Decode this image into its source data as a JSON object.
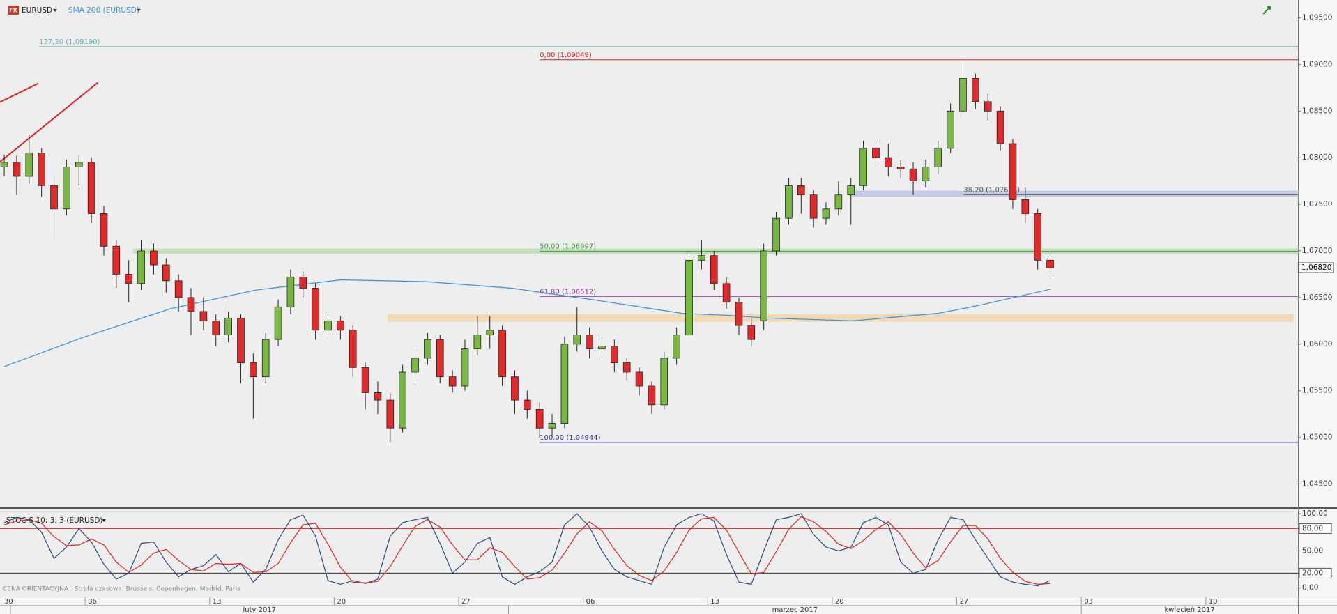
{
  "ui": {
    "logo": "FX",
    "symbol": "EURUSD",
    "indicator": "SMA 200 (EURUSD)",
    "oscillator": "STOC-S 10; 3; 3 (EURUSD)",
    "footer": "CENA ORIENTACYJNA   Strefa czasowa: Brussels, Copenhagen, Madrid, Paris"
  },
  "chart_data": [
    {
      "type": "candlestick",
      "name": "EURUSD",
      "up_color": "#78b843",
      "down_color": "#e12a2a",
      "x": [
        1.75,
        2.25,
        2.75,
        3.25,
        3.75,
        4.25,
        4.75,
        5.25,
        5.75,
        6.25,
        6.75,
        7.25,
        7.75,
        8.25,
        8.75,
        9.25,
        9.75,
        10.25,
        10.75,
        11.25,
        11.75,
        12.25,
        12.75,
        13.25,
        13.75,
        14.25,
        14.75,
        15.25,
        15.75,
        16.25,
        16.75,
        17.25,
        17.75,
        18.25,
        18.75,
        19.25,
        19.75,
        20.25,
        20.75,
        21.25,
        21.75,
        22.25,
        22.75,
        23.25,
        23.75,
        24.25,
        24.75,
        25.25,
        25.75,
        26.25,
        26.75,
        27.25,
        27.75,
        28.25,
        28.75,
        29.25,
        29.75,
        30.25,
        30.75,
        31.25,
        31.75,
        32.25,
        32.75,
        33.25,
        33.75,
        34.25,
        34.75,
        35.25,
        35.75,
        36.25,
        36.75,
        37.25,
        37.75,
        38.25,
        38.75,
        39.25,
        39.75,
        40.25,
        40.75,
        41.25,
        41.75,
        42.25,
        42.75,
        43.25,
        43.75
      ],
      "open": [
        1.079,
        1.0795,
        1.078,
        1.0805,
        1.077,
        1.0745,
        1.079,
        1.0795,
        1.074,
        1.0705,
        1.0675,
        1.0665,
        1.07,
        1.0685,
        1.0668,
        1.065,
        1.0635,
        1.0625,
        1.061,
        1.0628,
        1.058,
        1.0565,
        1.0605,
        1.064,
        1.0672,
        1.066,
        1.0615,
        1.0625,
        1.0615,
        1.0575,
        1.0548,
        1.054,
        1.051,
        1.057,
        1.0585,
        1.0605,
        1.0565,
        1.0555,
        1.0595,
        1.061,
        1.0615,
        1.0565,
        1.054,
        1.053,
        1.051,
        1.0515,
        1.06,
        1.061,
        1.0595,
        1.0598,
        1.058,
        1.057,
        1.0555,
        1.0535,
        1.0585,
        1.061,
        1.069,
        1.0695,
        1.0665,
        1.0645,
        1.062,
        1.0625,
        1.07,
        1.0735,
        1.077,
        1.076,
        1.0735,
        1.0745,
        1.076,
        1.077,
        1.081,
        1.08,
        1.079,
        1.0788,
        1.0775,
        1.079,
        1.081,
        1.085,
        1.0885,
        1.086,
        1.085,
        1.0815,
        1.0755,
        1.074,
        1.069
      ],
      "high": [
        1.0803,
        1.0802,
        1.0825,
        1.081,
        1.0778,
        1.0798,
        1.0802,
        1.08,
        1.0748,
        1.0712,
        1.069,
        1.0712,
        1.0708,
        1.0692,
        1.0675,
        1.066,
        1.065,
        1.0632,
        1.0635,
        1.0632,
        1.059,
        1.0612,
        1.0648,
        1.068,
        1.0678,
        1.0665,
        1.0632,
        1.063,
        1.062,
        1.058,
        1.056,
        1.0548,
        1.0578,
        1.0595,
        1.0612,
        1.061,
        1.0572,
        1.0605,
        1.063,
        1.063,
        1.062,
        1.0572,
        1.055,
        1.0538,
        1.0525,
        1.0608,
        1.064,
        1.0618,
        1.0608,
        1.0605,
        1.0585,
        1.0575,
        1.056,
        1.0592,
        1.0618,
        1.0698,
        1.0712,
        1.07,
        1.0672,
        1.065,
        1.0628,
        1.0708,
        1.0742,
        1.0778,
        1.0778,
        1.0765,
        1.0752,
        1.0775,
        1.0778,
        1.0818,
        1.0818,
        1.0815,
        1.0798,
        1.0795,
        1.0798,
        1.0818,
        1.0858,
        1.0905,
        1.089,
        1.0868,
        1.0855,
        1.082,
        1.0768,
        1.0745,
        1.07
      ],
      "low": [
        1.078,
        1.076,
        1.0772,
        1.0758,
        1.0712,
        1.0738,
        1.077,
        1.073,
        1.0695,
        1.066,
        1.0645,
        1.0658,
        1.0675,
        1.0655,
        1.0635,
        1.061,
        1.0615,
        1.0598,
        1.0602,
        1.0558,
        1.052,
        1.0558,
        1.0598,
        1.0632,
        1.065,
        1.0605,
        1.0605,
        1.0605,
        1.0565,
        1.053,
        1.0525,
        1.0495,
        1.0505,
        1.056,
        1.0578,
        1.0558,
        1.0548,
        1.055,
        1.0588,
        1.0595,
        1.0555,
        1.0525,
        1.052,
        1.05,
        1.05,
        1.051,
        1.0592,
        1.0585,
        1.0585,
        1.057,
        1.0562,
        1.0545,
        1.0525,
        1.053,
        1.0578,
        1.0605,
        1.068,
        1.0658,
        1.0638,
        1.061,
        1.0598,
        1.0615,
        1.0695,
        1.0728,
        1.074,
        1.0725,
        1.0728,
        1.0738,
        1.0728,
        1.0765,
        1.079,
        1.078,
        1.0778,
        1.076,
        1.0768,
        1.0782,
        1.0805,
        1.0845,
        1.0852,
        1.084,
        1.0808,
        1.0745,
        1.073,
        1.068,
        1.0672
      ],
      "close": [
        1.0795,
        1.078,
        1.0805,
        1.077,
        1.0745,
        1.079,
        1.0795,
        1.074,
        1.0705,
        1.0675,
        1.0665,
        1.07,
        1.0685,
        1.0668,
        1.065,
        1.0635,
        1.0625,
        1.061,
        1.0628,
        1.058,
        1.0565,
        1.0605,
        1.064,
        1.0672,
        1.066,
        1.0615,
        1.0625,
        1.0615,
        1.0575,
        1.0548,
        1.054,
        1.051,
        1.057,
        1.0585,
        1.0605,
        1.0565,
        1.0555,
        1.0595,
        1.061,
        1.0615,
        1.0565,
        1.054,
        1.053,
        1.051,
        1.0515,
        1.06,
        1.061,
        1.0595,
        1.0598,
        1.058,
        1.057,
        1.0555,
        1.0535,
        1.0585,
        1.061,
        1.069,
        1.0695,
        1.0665,
        1.0645,
        1.062,
        1.0605,
        1.07,
        1.0735,
        1.077,
        1.076,
        1.0735,
        1.0745,
        1.076,
        1.077,
        1.081,
        1.08,
        1.079,
        1.0788,
        1.0775,
        1.079,
        1.081,
        1.085,
        1.0885,
        1.086,
        1.085,
        1.0815,
        1.0755,
        1.074,
        1.069,
        1.0682
      ],
      "sma": {
        "name": "SMA 200 (EURUSD)",
        "color": "#3a8fd6",
        "x": [
          1.75,
          5.0,
          8.42,
          11.85,
          15.27,
          18.7,
          22.12,
          25.55,
          28.97,
          30.68,
          32.4,
          35.82,
          39.25,
          40.96,
          43.77
        ],
        "values": [
          1.0576,
          1.0608,
          1.0638,
          1.0658,
          1.0669,
          1.0667,
          1.066,
          1.0647,
          1.0633,
          1.0631,
          1.0628,
          1.0625,
          1.0633,
          1.0642,
          1.0659
        ]
      },
      "fib_levels": [
        {
          "label": "127,20 (1,09190)",
          "value": 1.0919,
          "x_start": 3.15,
          "color": "#5fb3b8"
        },
        {
          "label": "0,00 (1,09049)",
          "value": 1.09049,
          "x_start": 23.25,
          "color": "#e02020"
        },
        {
          "label": "38,20 (1,07603)",
          "value": 1.07603,
          "x_start": 40.27,
          "color": "#555555"
        },
        {
          "label": "50,00 (1,06997)",
          "value": 1.06997,
          "x_start": 23.25,
          "color": "#3a9a3a"
        },
        {
          "label": "61,80 (1,06512)",
          "value": 1.06512,
          "x_start": 23.25,
          "color": "#8a2a9a"
        },
        {
          "label": "100,00 (1,04944)",
          "value": 1.04944,
          "x_start": 23.25,
          "color": "#2a2ab0"
        }
      ],
      "zones": [
        {
          "x_start": 35.8,
          "low": 1.07585,
          "high": 1.0764,
          "color": "#b9c4e6"
        },
        {
          "x_start": 6.95,
          "low": 1.06975,
          "high": 1.0702,
          "color": "#b8ddb0"
        },
        {
          "x_start": 17.16,
          "x_end": 53.5,
          "low": 1.06245,
          "high": 1.06315,
          "color": "#f4d4a8"
        }
      ],
      "trend_color": "#e02020",
      "trend_lines": [
        {
          "x1": 1.58,
          "y1": 1.08595,
          "x2": 3.12,
          "y2": 1.08796
        },
        {
          "x1": 1.58,
          "y1": 1.07955,
          "x2": 5.51,
          "y2": 1.08805
        }
      ],
      "last_price": {
        "value": 1.0682,
        "label": "1,06820"
      },
      "xlim": [
        1.58,
        53.7
      ],
      "ylim": [
        1.0425,
        1.0969
      ],
      "yticks": [
        {
          "value": 1.095,
          "label": "1,09500"
        },
        {
          "value": 1.09,
          "label": "1,09000"
        },
        {
          "value": 1.085,
          "label": "1,08500"
        },
        {
          "value": 1.08,
          "label": "1,08000"
        },
        {
          "value": 1.075,
          "label": "1,07500"
        },
        {
          "value": 1.07,
          "label": "1,07000"
        },
        {
          "value": 1.065,
          "label": "1,06500"
        },
        {
          "value": 1.06,
          "label": "1,06000"
        },
        {
          "value": 1.055,
          "label": "1,05500"
        },
        {
          "value": 1.05,
          "label": "1,05000"
        },
        {
          "value": 1.045,
          "label": "1,04500"
        }
      ],
      "xticks": [
        {
          "value": 0,
          "label": "30"
        },
        {
          "value": 5,
          "label": "06"
        },
        {
          "value": 10,
          "label": "13"
        },
        {
          "value": 15,
          "label": "20"
        },
        {
          "value": 20,
          "label": "27"
        },
        {
          "value": 25,
          "label": "06"
        },
        {
          "value": 30,
          "label": "13"
        },
        {
          "value": 35,
          "label": "20"
        },
        {
          "value": 40,
          "label": "27"
        },
        {
          "value": 45,
          "label": "03"
        },
        {
          "value": 50,
          "label": "10"
        }
      ],
      "months": [
        {
          "label": "luty 2017",
          "start": 2
        },
        {
          "label": "marzec 2017",
          "start": 22
        },
        {
          "label": "kwiecień 2017",
          "start": 45
        }
      ]
    },
    {
      "type": "line",
      "title": "STOC-S 10; 3; 3 (EURUSD)",
      "x": [
        1.75,
        2.25,
        2.75,
        3.25,
        3.75,
        4.25,
        4.75,
        5.25,
        5.75,
        6.25,
        6.75,
        7.25,
        7.75,
        8.25,
        8.75,
        9.25,
        9.75,
        10.25,
        10.75,
        11.25,
        11.75,
        12.25,
        12.75,
        13.25,
        13.75,
        14.25,
        14.75,
        15.25,
        15.75,
        16.25,
        16.75,
        17.25,
        17.75,
        18.25,
        18.75,
        19.25,
        19.75,
        20.25,
        20.75,
        21.25,
        21.75,
        22.25,
        22.75,
        23.25,
        23.75,
        24.25,
        24.75,
        25.25,
        25.75,
        26.25,
        26.75,
        27.25,
        27.75,
        28.25,
        28.75,
        29.25,
        29.75,
        30.25,
        30.75,
        31.25,
        31.75,
        32.25,
        32.75,
        33.25,
        33.75,
        34.25,
        34.75,
        35.25,
        35.75,
        36.25,
        36.75,
        37.25,
        37.75,
        38.25,
        38.75,
        39.25,
        39.75,
        40.25,
        40.75,
        41.25,
        41.75,
        42.25,
        42.75,
        43.25,
        43.75
      ],
      "series": [
        {
          "color": "#2b4a7a",
          "values": [
            88,
            95,
            92,
            75,
            40,
            55,
            80,
            62,
            32,
            12,
            20,
            60,
            62,
            35,
            15,
            25,
            30,
            45,
            22,
            33,
            8,
            25,
            65,
            92,
            98,
            70,
            10,
            5,
            10,
            6,
            12,
            70,
            88,
            92,
            95,
            60,
            20,
            35,
            60,
            68,
            15,
            5,
            15,
            22,
            35,
            85,
            100,
            82,
            50,
            25,
            15,
            10,
            5,
            55,
            85,
            95,
            100,
            90,
            45,
            8,
            5,
            50,
            92,
            95,
            100,
            72,
            55,
            50,
            55,
            88,
            95,
            85,
            35,
            20,
            25,
            65,
            95,
            92,
            65,
            40,
            15,
            8,
            5,
            3,
            10
          ]
        },
        {
          "color": "#e02020",
          "values": [
            85,
            90,
            92,
            87,
            69,
            57,
            58,
            66,
            58,
            35,
            21,
            31,
            47,
            52,
            37,
            25,
            23,
            33,
            32,
            33,
            21,
            22,
            33,
            61,
            85,
            87,
            59,
            28,
            8,
            7,
            9,
            29,
            57,
            83,
            92,
            82,
            58,
            38,
            38,
            54,
            48,
            29,
            12,
            14,
            24,
            47,
            73,
            89,
            77,
            52,
            30,
            17,
            10,
            23,
            48,
            78,
            93,
            95,
            78,
            48,
            19,
            21,
            49,
            79,
            96,
            89,
            76,
            59,
            53,
            64,
            79,
            89,
            72,
            47,
            27,
            37,
            62,
            84,
            84,
            66,
            40,
            21,
            9,
            5,
            6
          ]
        }
      ],
      "levels": [
        {
          "value": 80,
          "color": "#e02020"
        },
        {
          "value": 20,
          "color": "#333333"
        }
      ],
      "xlim": [
        1.58,
        53.7
      ],
      "ylim": [
        -11.5,
        105.7
      ],
      "yticks": [
        {
          "value": 100,
          "label": "100,00"
        },
        {
          "value": 80,
          "label": "80,00"
        },
        {
          "value": 50,
          "label": "50,00"
        },
        {
          "value": 20,
          "label": "20,00"
        },
        {
          "value": 0,
          "label": "0,00"
        }
      ]
    }
  ]
}
